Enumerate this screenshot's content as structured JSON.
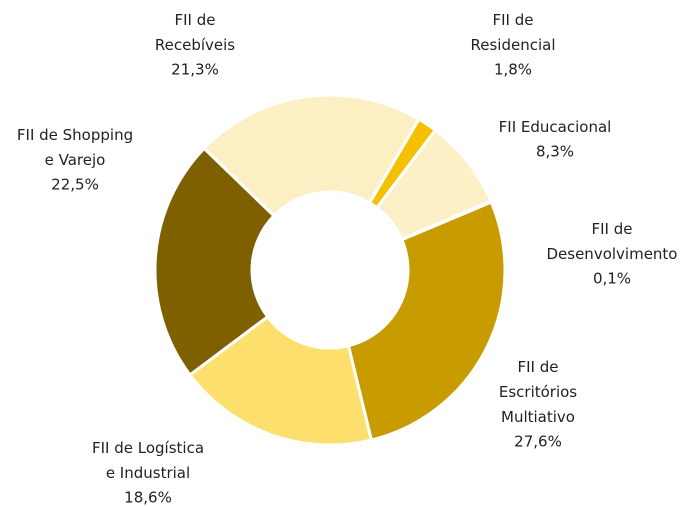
{
  "chart_data": {
    "type": "donut",
    "categories": [
      "FII de\nRecebíveis",
      "FII de\nResidencial",
      "FII Educacional",
      "FII de\nDesenvolvimento",
      "FII de\nEscritórios\nMultiativo",
      "FII de Logística\ne Industrial",
      "FII de Shopping\ne Varejo"
    ],
    "values": [
      21.3,
      1.8,
      8.3,
      0.1,
      27.6,
      18.6,
      22.5
    ],
    "value_labels": [
      "21,3%",
      "1,8%",
      "8,3%",
      "0,1%",
      "27,6%",
      "18,6%",
      "22,5%"
    ],
    "colors": [
      "#fdefc4",
      "#f5c000",
      "#fef0c6",
      "#e8d9a0",
      "#c89b00",
      "#fddf6e",
      "#7f6000"
    ]
  }
}
